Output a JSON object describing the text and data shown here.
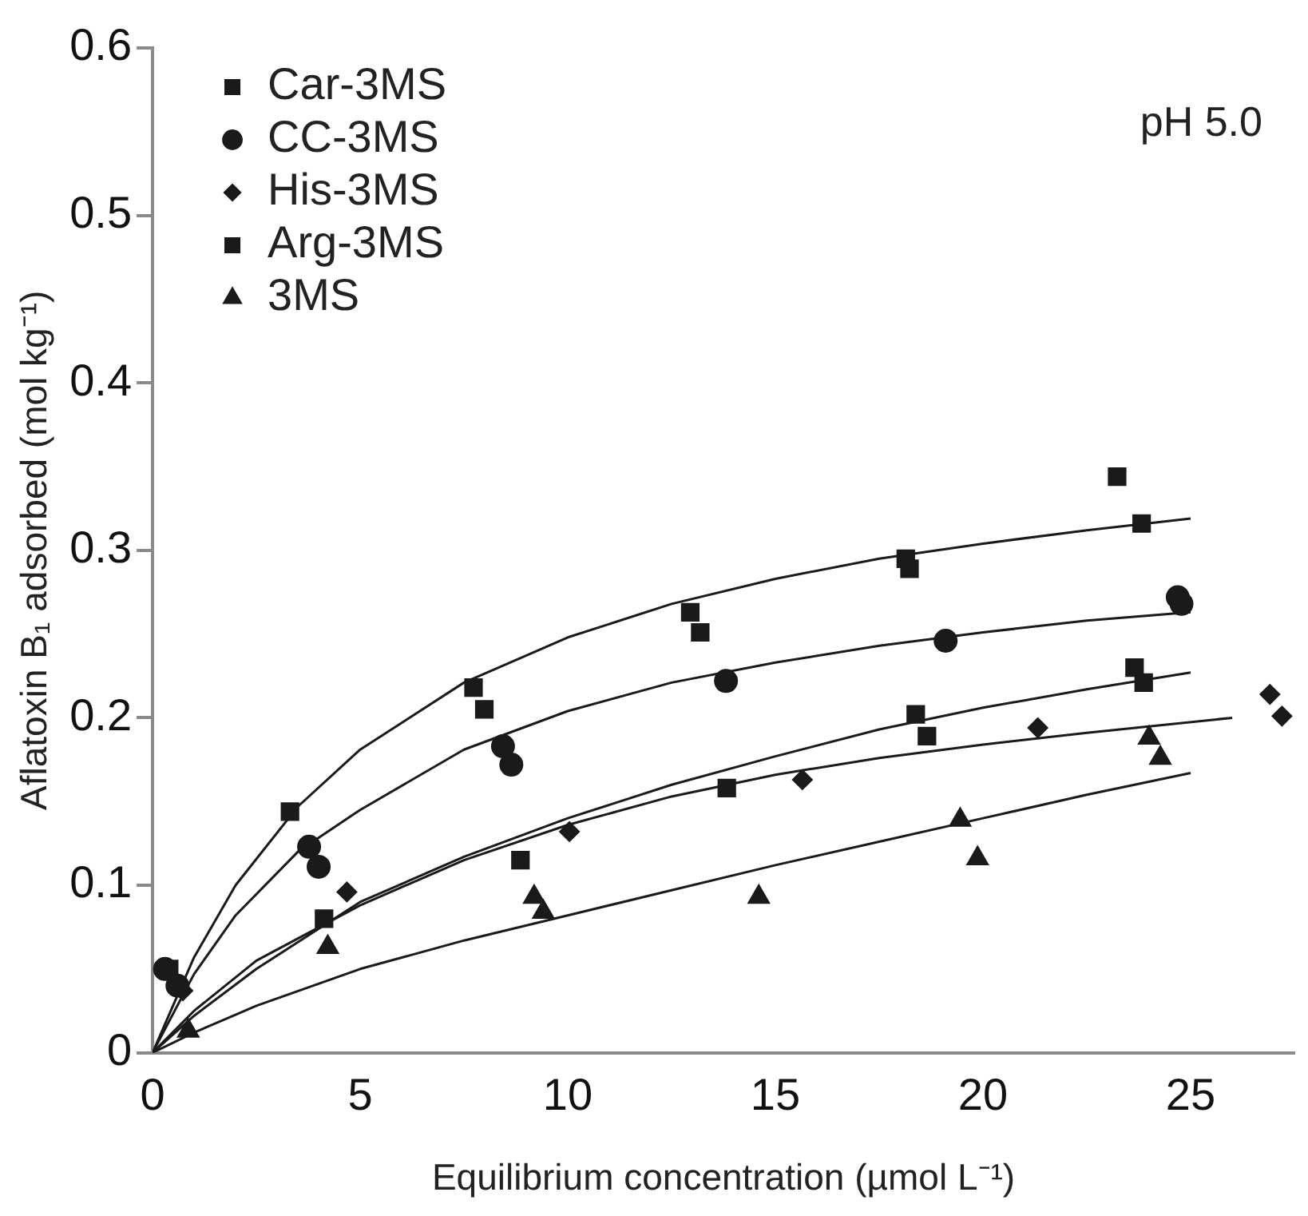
{
  "chart_data": {
    "type": "scatter",
    "xlabel": "Equilibrium concentration (µmol L⁻¹)",
    "ylabel": "Aflatoxin B₁ adsorbed (mol kg⁻¹)",
    "annotations": [
      "pH 5.0"
    ],
    "xlim": [
      0,
      27.5
    ],
    "xticks": [
      0,
      5,
      10,
      15,
      20,
      25
    ],
    "ylim": [
      0,
      0.6
    ],
    "yticks": [
      0,
      0.1,
      0.2,
      0.3,
      0.4,
      0.5,
      0.6
    ],
    "grid": false,
    "legend": "top left",
    "series": [
      {
        "name": "Car-3MS",
        "color": "#1a1a1a",
        "marker": "square",
        "x": [
          0.4,
          3.31,
          7.73,
          7.99,
          12.95,
          13.19,
          18.14,
          18.23,
          23.23,
          23.82
        ],
        "values": [
          0.05,
          0.144,
          0.218,
          0.205,
          0.263,
          0.251,
          0.295,
          0.289,
          0.344,
          0.316
        ]
      },
      {
        "name": "CC-3MS",
        "color": "#1a1a1a",
        "marker": "circle",
        "x": [
          0.3,
          0.6,
          3.77,
          4.0,
          8.44,
          8.64,
          13.81,
          19.1,
          24.69,
          24.78
        ],
        "values": [
          0.05,
          0.04,
          0.123,
          0.111,
          0.183,
          0.172,
          0.222,
          0.246,
          0.272,
          0.268
        ]
      },
      {
        "name": "His-3MS",
        "color": "#1a1a1a",
        "marker": "diamond",
        "x": [
          0.73,
          4.68,
          10.04,
          15.65,
          21.32,
          26.91,
          27.2
        ],
        "values": [
          0.037,
          0.096,
          0.132,
          0.163,
          0.194,
          0.214,
          0.201
        ]
      },
      {
        "name": "Arg-3MS",
        "color": "#1a1a1a",
        "marker": "square",
        "x": [
          4.13,
          8.86,
          13.83,
          18.38,
          18.65,
          23.65,
          23.87
        ],
        "values": [
          0.08,
          0.115,
          0.158,
          0.202,
          0.189,
          0.23,
          0.221
        ]
      },
      {
        "name": "3MS",
        "color": "#1a1a1a",
        "marker": "triangle",
        "x": [
          0.86,
          4.22,
          9.19,
          9.41,
          14.6,
          19.45,
          19.87,
          24.0,
          24.27
        ],
        "values": [
          0.013,
          0.063,
          0.093,
          0.084,
          0.093,
          0.139,
          0.116,
          0.188,
          0.176
        ]
      },
      {
        "type": "line",
        "color": "#1a1a1a",
        "marker": "none",
        "x": [
          0,
          1,
          2,
          3.5,
          5,
          7.5,
          10,
          12.5,
          15,
          17.5,
          20,
          22.5,
          25
        ],
        "values": [
          0,
          0.057,
          0.1,
          0.147,
          0.181,
          0.221,
          0.248,
          0.268,
          0.283,
          0.295,
          0.304,
          0.312,
          0.319
        ]
      },
      {
        "type": "line",
        "color": "#1a1a1a",
        "marker": "none",
        "x": [
          0,
          1,
          2,
          3.5,
          5,
          7.5,
          10,
          12.5,
          15,
          17.5,
          20,
          22.5,
          25
        ],
        "values": [
          0,
          0.047,
          0.082,
          0.12,
          0.145,
          0.181,
          0.204,
          0.221,
          0.233,
          0.243,
          0.251,
          0.258,
          0.263
        ]
      },
      {
        "type": "line",
        "color": "#1a1a1a",
        "marker": "none",
        "x": [
          0,
          1,
          2.5,
          5,
          7.5,
          10,
          12.5,
          15,
          17.5,
          20,
          22.5,
          26
        ],
        "values": [
          0,
          0.025,
          0.055,
          0.088,
          0.115,
          0.136,
          0.153,
          0.166,
          0.176,
          0.184,
          0.191,
          0.2
        ]
      },
      {
        "type": "line",
        "color": "#1a1a1a",
        "marker": "none",
        "x": [
          0,
          1,
          2.5,
          5,
          7.5,
          10,
          12.5,
          15,
          17.5,
          20,
          22.5,
          25
        ],
        "values": [
          0,
          0.022,
          0.05,
          0.09,
          0.117,
          0.14,
          0.16,
          0.177,
          0.193,
          0.206,
          0.217,
          0.227
        ]
      },
      {
        "type": "line",
        "color": "#1a1a1a",
        "marker": "none",
        "x": [
          0,
          1,
          2.5,
          5,
          7.5,
          10,
          12.5,
          15,
          17.5,
          20,
          22.5,
          25
        ],
        "values": [
          0,
          0.012,
          0.028,
          0.05,
          0.067,
          0.082,
          0.097,
          0.112,
          0.126,
          0.14,
          0.154,
          0.167
        ]
      }
    ]
  }
}
